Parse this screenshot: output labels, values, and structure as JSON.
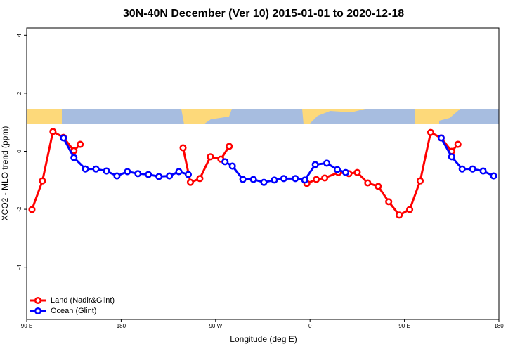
{
  "chart_data": {
    "type": "line",
    "title": "30N-40N December (Ver 10)   2015-01-01 to 2020-12-18",
    "x_label": "Longitude (deg E)",
    "y_label": "XCO2 - MLO trend (ppm)",
    "xlim": [
      90,
      540
    ],
    "ylim": [
      -5.8,
      4.25
    ],
    "xticks": [
      {
        "value": 90,
        "label": "90 E"
      },
      180,
      {
        "value": 270,
        "label": "90 W"
      },
      {
        "value": 360,
        "label": "0"
      },
      {
        "value": 450,
        "label": "90 E"
      },
      {
        "value": 540,
        "label": "180"
      }
    ],
    "yticks": [
      -4,
      -2,
      0,
      2,
      4
    ],
    "grid": false,
    "legend": "bottom-left",
    "series": [
      {
        "name": "Land (Nadir&Glint)",
        "color": "#ff0000",
        "x": [
          95,
          105,
          115,
          125,
          135,
          141,
          null,
          239,
          246,
          255,
          265,
          275,
          283,
          null,
          357,
          366,
          374,
          387,
          397,
          405,
          415,
          425,
          435,
          445,
          455,
          465,
          475,
          485,
          495,
          501
        ],
        "values": [
          -2.01,
          -1.02,
          0.68,
          0.48,
          0.02,
          0.24,
          null,
          0.12,
          -1.07,
          -0.94,
          -0.19,
          -0.27,
          0.17,
          null,
          -1.11,
          -0.97,
          -0.92,
          -0.73,
          -0.77,
          -0.73,
          -1.09,
          -1.21,
          -1.74,
          -2.2,
          -2.01,
          -1.02,
          0.65,
          0.46,
          0,
          0.24
        ]
      },
      {
        "name": "Ocean (Glint)",
        "color": "#0000ff",
        "x": [
          125,
          135,
          146,
          156,
          166,
          176,
          186,
          196,
          206,
          216,
          226,
          235,
          244,
          null,
          279,
          286,
          296,
          306,
          316,
          326,
          335,
          346,
          355,
          365,
          376,
          386,
          394,
          null,
          485,
          495,
          505,
          515,
          525,
          535
        ],
        "values": [
          0.46,
          -0.22,
          -0.61,
          -0.61,
          -0.68,
          -0.85,
          -0.7,
          -0.77,
          -0.8,
          -0.87,
          -0.85,
          -0.7,
          -0.8,
          null,
          -0.36,
          -0.51,
          -0.97,
          -0.97,
          -1.07,
          -0.99,
          -0.94,
          -0.94,
          -0.99,
          -0.46,
          -0.41,
          -0.63,
          -0.73,
          null,
          0.46,
          -0.19,
          -0.61,
          -0.61,
          -0.68,
          -0.85
        ]
      }
    ]
  }
}
